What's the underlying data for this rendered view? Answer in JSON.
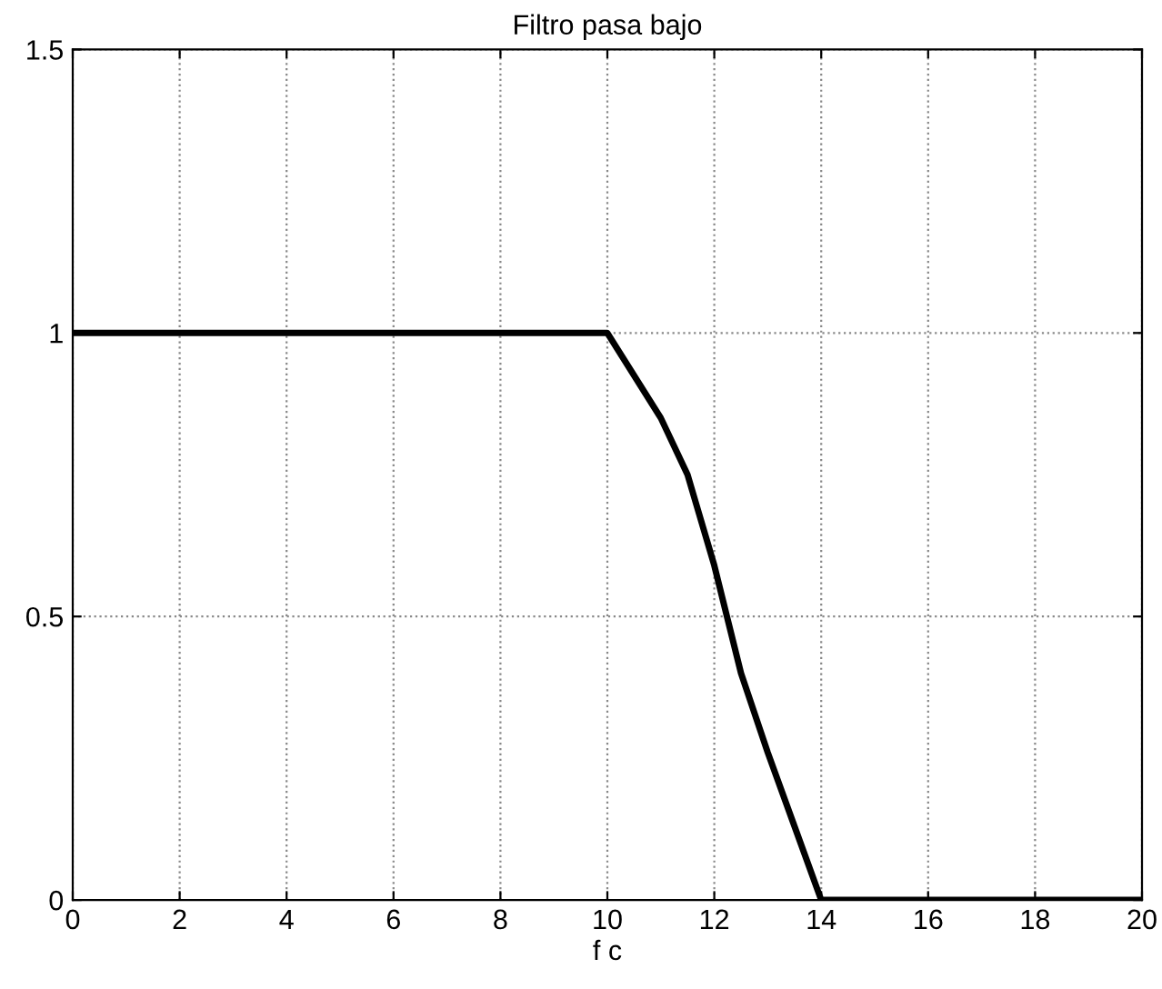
{
  "chart_data": {
    "type": "line",
    "title": "Filtro pasa bajo",
    "xlabel": "f c",
    "series": [
      {
        "color": "#000000",
        "x": [
          0,
          10,
          11,
          11.5,
          12,
          12.5,
          13,
          13.5,
          14,
          20
        ],
        "values": [
          1,
          1,
          0.85,
          0.75,
          0.59,
          0.4,
          0.26,
          0.13,
          0,
          0
        ]
      }
    ],
    "xlim": [
      0,
      20
    ],
    "xticks": [
      0,
      2,
      4,
      6,
      8,
      10,
      12,
      14,
      16,
      18,
      20
    ],
    "ylim": [
      0,
      1.5
    ],
    "yticks": [
      0,
      0.5,
      1,
      1.5
    ],
    "grid": true,
    "line_style": "solid",
    "marker": "none"
  }
}
